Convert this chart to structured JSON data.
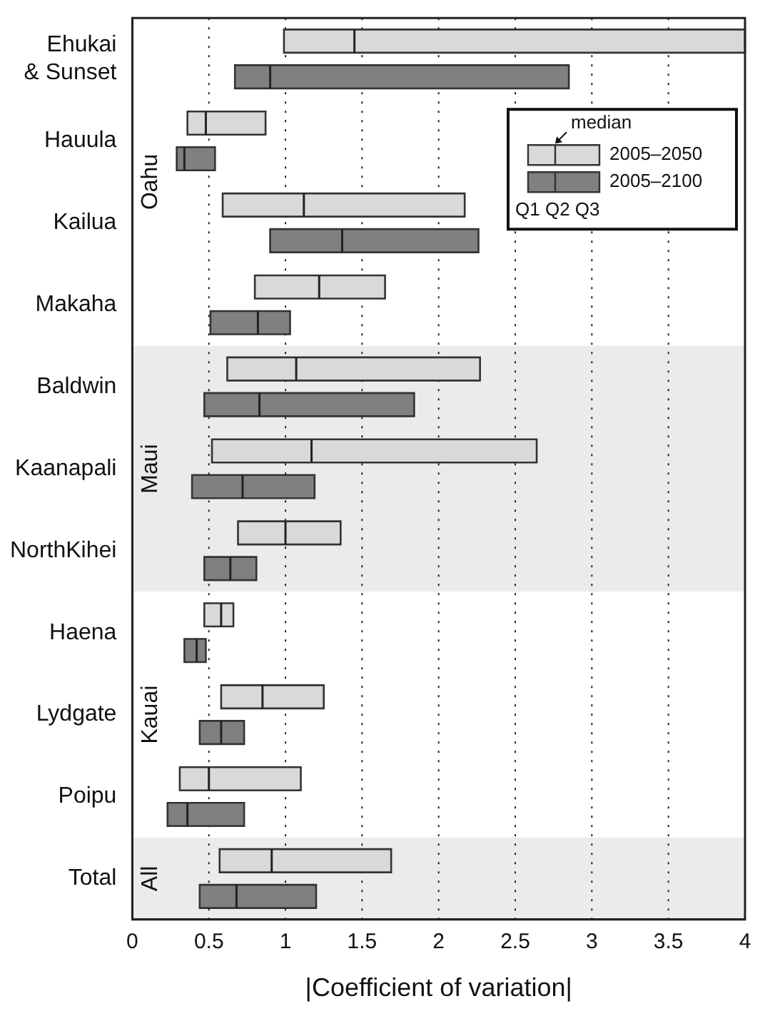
{
  "chart_data": {
    "type": "box",
    "orientation": "horizontal",
    "xlabel": "|Coefficient of variation|",
    "categories": [
      "Ehukai & Sunset",
      "Hauula",
      "Kailua",
      "Makaha",
      "Baldwin",
      "Kaanapali",
      "NorthKihei",
      "Haena",
      "Lydgate",
      "Poipu",
      "Total"
    ],
    "xlim": [
      0,
      4
    ],
    "xticks": [
      0,
      0.5,
      1,
      1.5,
      2,
      2.5,
      3,
      3.5,
      4
    ],
    "grid": "x",
    "legend": "top right",
    "series": [
      {
        "name": "2005–2050",
        "color": "#d9d9d9",
        "boxes": [
          {
            "low": 0.99,
            "q1": 0.99,
            "median": 1.45,
            "q3": 4.0,
            "high": 4.0
          },
          {
            "low": 0.36,
            "q1": 0.36,
            "median": 0.48,
            "q3": 0.87,
            "high": 0.87
          },
          {
            "low": 0.59,
            "q1": 0.59,
            "median": 1.12,
            "q3": 2.17,
            "high": 2.17
          },
          {
            "low": 0.8,
            "q1": 0.8,
            "median": 1.22,
            "q3": 1.65,
            "high": 1.65
          },
          {
            "low": 0.62,
            "q1": 0.62,
            "median": 1.07,
            "q3": 2.27,
            "high": 2.27
          },
          {
            "low": 0.52,
            "q1": 0.52,
            "median": 1.17,
            "q3": 2.64,
            "high": 2.64
          },
          {
            "low": 0.69,
            "q1": 0.69,
            "median": 1.0,
            "q3": 1.36,
            "high": 1.36
          },
          {
            "low": 0.47,
            "q1": 0.47,
            "median": 0.58,
            "q3": 0.66,
            "high": 0.66
          },
          {
            "low": 0.58,
            "q1": 0.58,
            "median": 0.85,
            "q3": 1.25,
            "high": 1.25
          },
          {
            "low": 0.31,
            "q1": 0.31,
            "median": 0.5,
            "q3": 1.1,
            "high": 1.1
          },
          {
            "low": 0.57,
            "q1": 0.57,
            "median": 0.91,
            "q3": 1.69,
            "high": 1.69
          }
        ]
      },
      {
        "name": "2005–2100",
        "color": "#808080",
        "boxes": [
          {
            "low": 0.67,
            "q1": 0.67,
            "median": 0.9,
            "q3": 2.85,
            "high": 2.85
          },
          {
            "low": 0.29,
            "q1": 0.29,
            "median": 0.34,
            "q3": 0.54,
            "high": 0.54
          },
          {
            "low": 0.9,
            "q1": 0.9,
            "median": 1.37,
            "q3": 2.26,
            "high": 2.26
          },
          {
            "low": 0.51,
            "q1": 0.51,
            "median": 0.82,
            "q3": 1.03,
            "high": 1.03
          },
          {
            "low": 0.47,
            "q1": 0.47,
            "median": 0.83,
            "q3": 1.84,
            "high": 1.84
          },
          {
            "low": 0.39,
            "q1": 0.39,
            "median": 0.72,
            "q3": 1.19,
            "high": 1.19
          },
          {
            "low": 0.47,
            "q1": 0.47,
            "median": 0.64,
            "q3": 0.81,
            "high": 0.81
          },
          {
            "low": 0.34,
            "q1": 0.34,
            "median": 0.42,
            "q3": 0.48,
            "high": 0.48
          },
          {
            "low": 0.44,
            "q1": 0.44,
            "median": 0.58,
            "q3": 0.73,
            "high": 0.73
          },
          {
            "low": 0.23,
            "q1": 0.23,
            "median": 0.36,
            "q3": 0.73,
            "high": 0.73
          },
          {
            "low": 0.44,
            "q1": 0.44,
            "median": 0.68,
            "q3": 1.2,
            "high": 1.2
          }
        ]
      }
    ],
    "bands": [
      {
        "axis": "y",
        "from": "Baldwin",
        "to": "NorthKihei",
        "label": "Maui",
        "color": "#ebecea"
      },
      {
        "axis": "y",
        "from": "Total",
        "to": "Total",
        "label": "All",
        "color": "#ebecea"
      }
    ],
    "annotations": [
      "median",
      "Q1 Q2 Q3",
      "Oahu",
      "Kauai"
    ]
  }
}
